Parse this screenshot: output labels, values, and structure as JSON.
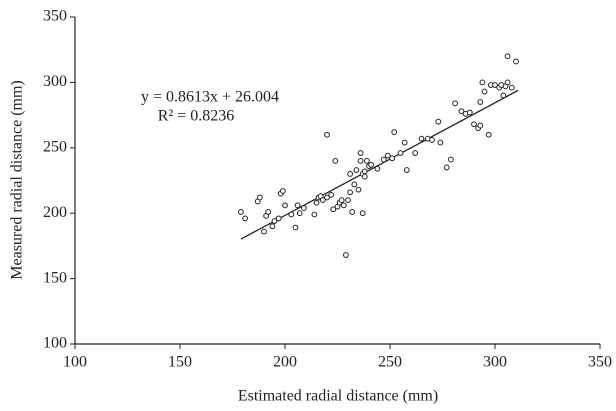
{
  "chart_data": {
    "type": "scatter",
    "x_label": "Estimated radial distance (mm)",
    "y_label": "Measured radial distance (mm)",
    "annotations": [
      "y = 0.8613x + 26.004",
      "R² = 0.8236"
    ],
    "color": "#222222",
    "x": [
      179,
      181,
      187,
      188,
      190,
      191,
      192,
      194,
      195,
      197,
      198,
      199,
      200,
      203,
      205,
      206,
      207,
      209,
      214,
      215,
      216,
      217,
      218,
      220,
      220,
      222,
      223,
      224,
      225,
      226,
      227,
      228,
      229,
      230,
      231,
      231,
      232,
      233,
      234,
      235,
      236,
      236,
      237,
      237,
      238,
      238,
      239,
      240,
      241,
      244,
      247,
      249,
      251,
      252,
      255,
      257,
      258,
      262,
      265,
      268,
      270,
      273,
      274,
      277,
      279,
      281,
      284,
      286,
      288,
      290,
      292,
      293,
      293,
      294,
      295,
      297,
      298,
      300,
      302,
      303,
      304,
      305,
      306,
      306,
      308,
      310
    ],
    "values": [
      201,
      196,
      209,
      212,
      186,
      198,
      201,
      190,
      194,
      196,
      215,
      217,
      206,
      199,
      189,
      206,
      200,
      204,
      199,
      208,
      212,
      213,
      210,
      212,
      260,
      214,
      203,
      240,
      205,
      208,
      210,
      206,
      168,
      210,
      216,
      230,
      201,
      222,
      233,
      218,
      246,
      240,
      200,
      230,
      232,
      228,
      240,
      236,
      237,
      234,
      241,
      244,
      242,
      262,
      246,
      254,
      233,
      246,
      257,
      257,
      256,
      270,
      254,
      235,
      241,
      284,
      278,
      276,
      277,
      268,
      265,
      285,
      267,
      300,
      293,
      260,
      298,
      298,
      296,
      298,
      290,
      297,
      320,
      300,
      296,
      316
    ],
    "trendline": {
      "x": [
        179,
        311
      ],
      "values": [
        180.2,
        293.9
      ]
    },
    "xlim": [
      100,
      350
    ],
    "ylim": [
      100,
      350
    ],
    "xticks": [
      100,
      150,
      200,
      250,
      300,
      350
    ],
    "yticks": [
      100,
      150,
      200,
      250,
      300,
      350
    ],
    "grid": false
  }
}
